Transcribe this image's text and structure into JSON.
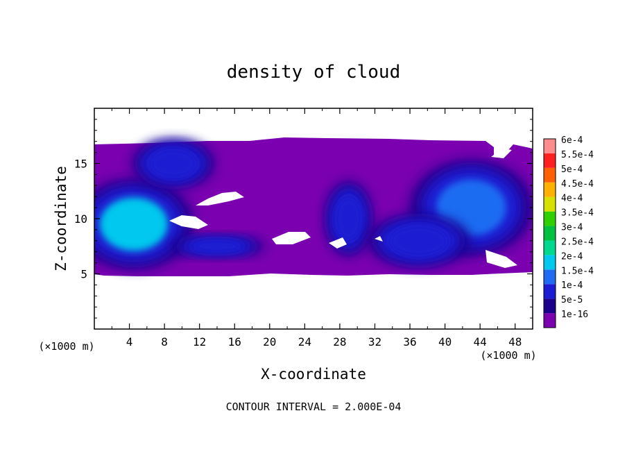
{
  "chart_data": {
    "type": "heatmap",
    "title": "density of cloud",
    "xlabel": "X-coordinate",
    "ylabel": "Z-coordinate",
    "x_unit": "(×1000 m)",
    "y_unit": "(×1000 m)",
    "xlim": [
      0,
      50
    ],
    "ylim": [
      0,
      20
    ],
    "x_ticks": [
      4,
      8,
      12,
      16,
      20,
      24,
      28,
      32,
      36,
      40,
      44,
      48
    ],
    "y_ticks": [
      5,
      10,
      15
    ],
    "contour_interval_text": "CONTOUR INTERVAL = 2.000E-04",
    "colorbar": {
      "levels": [
        "1e-16",
        "5e-5",
        "1e-4",
        "1.5e-4",
        "2e-4",
        "2.5e-4",
        "3e-4",
        "3.5e-4",
        "4e-4",
        "4.5e-4",
        "5e-4",
        "5.5e-4",
        "6e-4"
      ],
      "colors": [
        "#7a00b0",
        "#1a008c",
        "#1c1cd2",
        "#1f6cf2",
        "#00c8ee",
        "#00d890",
        "#00c040",
        "#30d000",
        "#d8e000",
        "#ffb000",
        "#ff6000",
        "#ff2020",
        "#ff8c8c"
      ]
    },
    "cloud_band": {
      "z_bottom": 5,
      "z_top": 17
    },
    "features": [
      {
        "x": 4.5,
        "z": 9.5,
        "level": "2e-4"
      },
      {
        "x": 9,
        "z": 15,
        "level": "1e-4"
      },
      {
        "x": 43,
        "z": 11,
        "level": "1.5e-4"
      },
      {
        "x": 29,
        "z": 10,
        "level": "1e-4"
      },
      {
        "x": 37,
        "z": 8,
        "level": "1e-4"
      },
      {
        "x": 14,
        "z": 7.5,
        "level": "1e-4"
      }
    ]
  }
}
